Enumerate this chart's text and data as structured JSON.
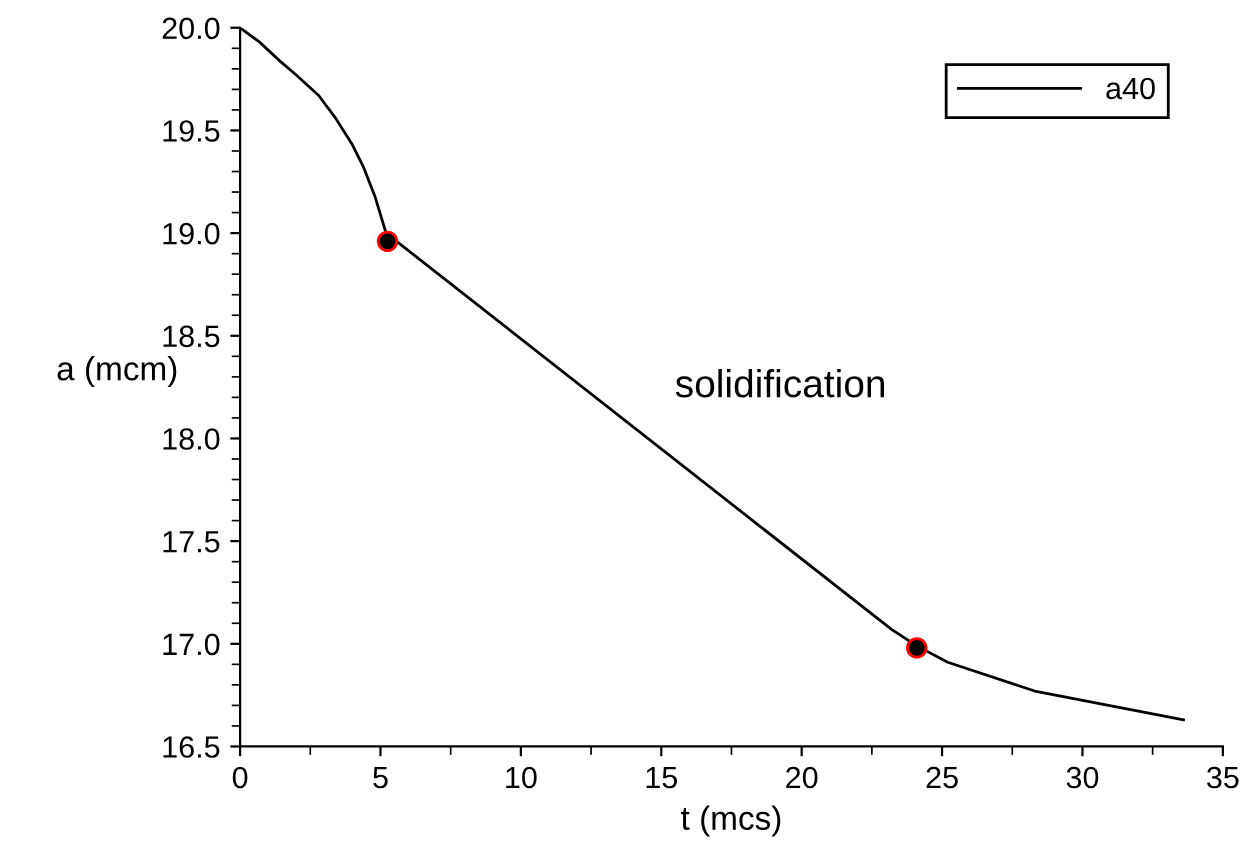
{
  "chart_data": {
    "type": "line",
    "xlabel": "t (mcs)",
    "ylabel": "a (mcm)",
    "xlim": [
      0,
      35
    ],
    "ylim": [
      16.5,
      20.0
    ],
    "xticks": [
      0,
      5,
      10,
      15,
      20,
      25,
      30,
      35
    ],
    "yticks": [
      {
        "value": 16.5,
        "label": "16.5"
      },
      {
        "value": 17.0,
        "label": "17.0"
      },
      {
        "value": 17.5,
        "label": "17.5"
      },
      {
        "value": 18.0,
        "label": "18.0"
      },
      {
        "value": 18.5,
        "label": "18.5"
      },
      {
        "value": 19.0,
        "label": "19.0"
      },
      {
        "value": 19.5,
        "label": "19.5"
      },
      {
        "value": 20.0,
        "label": "20.0"
      }
    ],
    "grid": false,
    "legend": "top right",
    "annotations": [
      "solidification"
    ],
    "series": [
      {
        "name": "a40",
        "color": "#000000",
        "x": [
          0,
          0.7,
          1.4,
          2.0,
          2.8,
          3.4,
          4.0,
          4.4,
          4.8,
          5.2,
          23.2,
          24.1,
          25.2,
          28.3,
          33.6
        ],
        "values": [
          20.0,
          19.93,
          19.84,
          19.77,
          19.67,
          19.56,
          19.43,
          19.32,
          19.18,
          19.0,
          17.07,
          16.99,
          16.91,
          16.77,
          16.63
        ]
      },
      {
        "type": "scatter",
        "color": "#000000",
        "marker": "circle",
        "x": [
          5.25,
          24.1
        ],
        "values": [
          18.96,
          16.98
        ]
      }
    ]
  }
}
